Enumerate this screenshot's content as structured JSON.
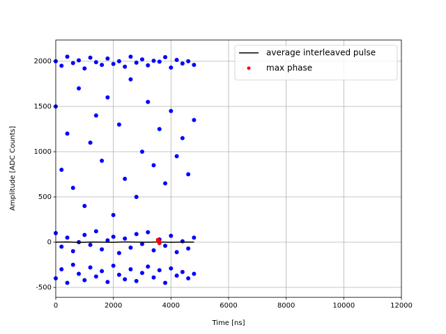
{
  "chart_data": {
    "type": "scatter",
    "xlabel": "Time [ns]",
    "ylabel": "Amplitude [ADC Counts]",
    "xlim": [
      0,
      12000
    ],
    "xticks": [
      0,
      2000,
      4000,
      6000,
      8000,
      10000,
      12000
    ],
    "ylim": [
      -609,
      2234
    ],
    "yticks": [
      -500,
      0,
      500,
      1000,
      1500,
      2000
    ],
    "grid": true,
    "legend": "upper right",
    "series": [
      {
        "color": "#0000ff",
        "marker": "dot",
        "x": [
          0,
          200,
          400,
          600,
          800,
          1000,
          1200,
          1400,
          1600,
          1800,
          2000,
          2200,
          2400,
          2600,
          2800,
          3000,
          3200,
          3400,
          3600,
          3800,
          4000,
          4200,
          4400,
          4600,
          4800,
          0,
          200,
          400,
          600,
          800,
          1000,
          1200,
          1400,
          1600,
          1800,
          2000,
          2200,
          2400,
          2600,
          2800,
          3000,
          3200,
          3400,
          3600,
          3800,
          4000,
          4200,
          4400,
          4600,
          4800,
          0,
          200,
          400,
          600,
          800,
          1000,
          1200,
          1400,
          1600,
          1800,
          2000,
          2200,
          2400,
          2600,
          2800,
          3000,
          3200,
          3400,
          3600,
          3800,
          4000,
          4200,
          4400,
          4600,
          4800,
          0,
          200,
          400,
          600,
          800,
          1000,
          1200,
          1400,
          1600,
          1800,
          2000,
          2200,
          2400,
          2600,
          2800,
          3000,
          3200,
          3400,
          3600,
          3800,
          4000,
          4200,
          4400,
          4600,
          4800
        ],
        "values": [
          2000,
          1950,
          2050,
          1980,
          2010,
          1920,
          2040,
          1990,
          1960,
          2030,
          1970,
          2000,
          1940,
          2050,
          1985,
          2020,
          1955,
          2005,
          1995,
          2045,
          1930,
          2015,
          1975,
          2000,
          1960,
          1500,
          800,
          1200,
          600,
          1700,
          400,
          1100,
          1400,
          900,
          1600,
          300,
          1300,
          700,
          1800,
          500,
          1000,
          1550,
          850,
          1250,
          650,
          1450,
          950,
          1150,
          750,
          1350,
          100,
          -50,
          50,
          -100,
          0,
          80,
          -30,
          120,
          -80,
          20,
          60,
          -120,
          40,
          -60,
          90,
          -20,
          110,
          -90,
          30,
          -40,
          70,
          -110,
          10,
          -70,
          50,
          -400,
          -300,
          -450,
          -250,
          -350,
          -420,
          -280,
          -380,
          -320,
          -440,
          -260,
          -360,
          -410,
          -300,
          -430,
          -340,
          -270,
          -390,
          -310,
          -450,
          -290,
          -370,
          -330,
          -400,
          -350
        ]
      },
      {
        "name": "average interleaved pulse",
        "color": "#000000",
        "marker": "line",
        "x": [
          0,
          400,
          800,
          1200,
          1600,
          2000,
          2400,
          2800,
          3200,
          3600,
          4000,
          4400,
          4800
        ],
        "values": [
          0,
          2,
          -3,
          1,
          0,
          -2,
          3,
          0,
          -1,
          2,
          -2,
          1,
          0
        ]
      },
      {
        "name": "max phase",
        "color": "#ff0000",
        "marker": "dot",
        "x": [
          3550,
          3580,
          3600
        ],
        "values": [
          25,
          10,
          -10
        ]
      }
    ]
  }
}
